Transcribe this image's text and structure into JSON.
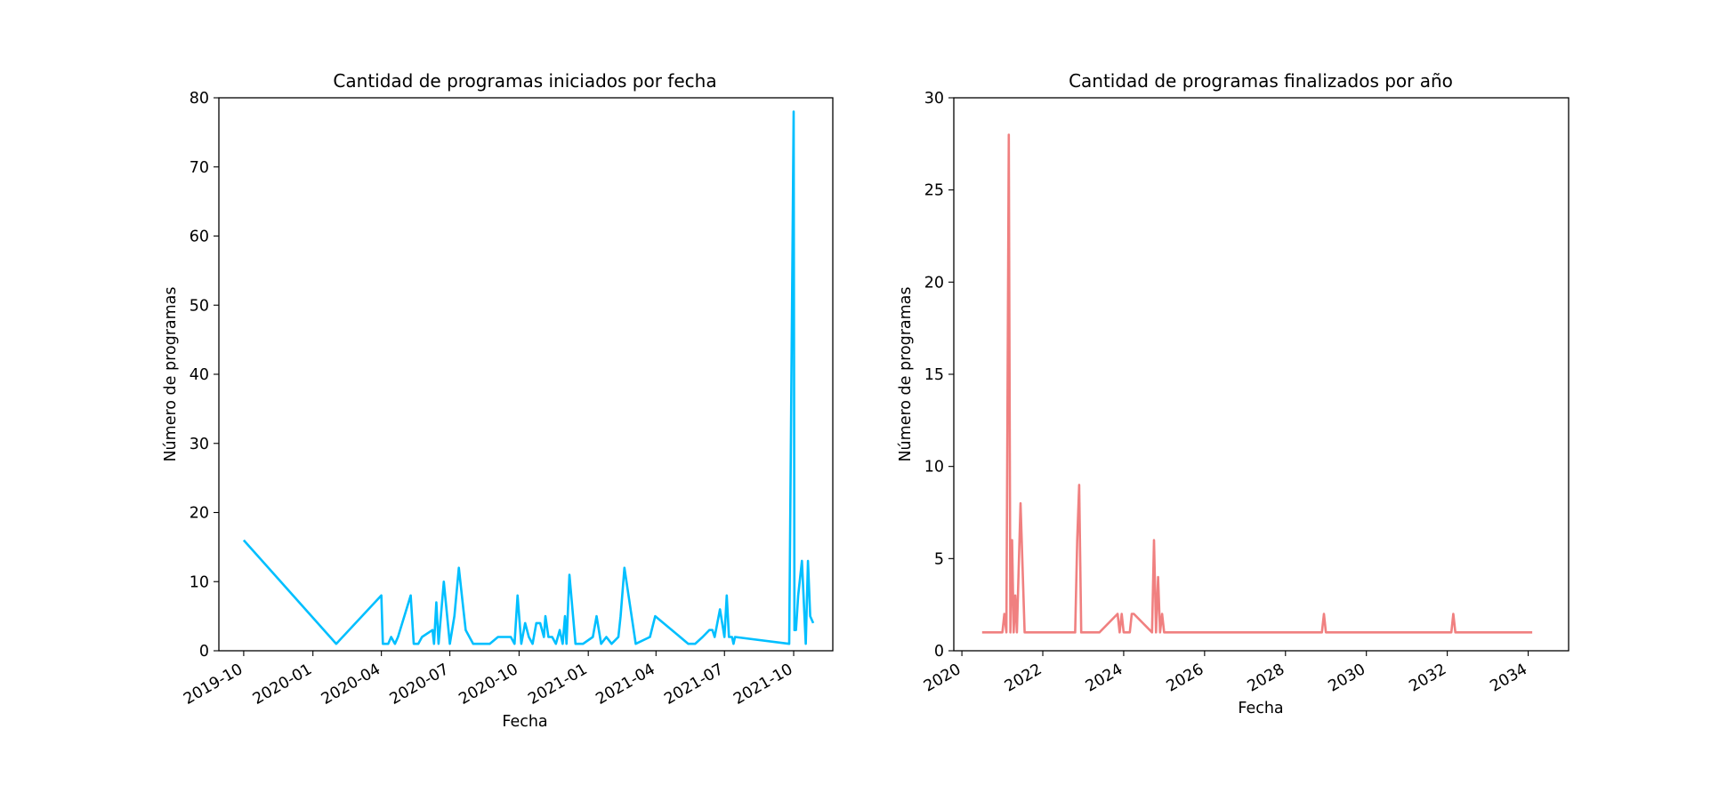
{
  "chart_data": [
    {
      "type": "line",
      "title": "Cantidad de programas iniciados por fecha",
      "xlabel": "Fecha",
      "ylabel": "Número de programas",
      "xticks": [
        "2019-10",
        "2020-01",
        "2020-04",
        "2020-07",
        "2020-10",
        "2021-01",
        "2021-04",
        "2021-07",
        "2021-10"
      ],
      "yticks": [
        "0",
        "10",
        "20",
        "30",
        "40",
        "50",
        "60",
        "70",
        "80"
      ],
      "xlim": [
        "2019-08-29",
        "2021-11-22"
      ],
      "ylim": [
        0,
        80
      ],
      "grid": false,
      "color": "#00bfff",
      "x": [
        "2019-10-01",
        "2020-02-01",
        "2020-04-01",
        "2020-04-03",
        "2020-04-10",
        "2020-04-14",
        "2020-04-19",
        "2020-04-23",
        "2020-05-10",
        "2020-05-14",
        "2020-05-20",
        "2020-05-25",
        "2020-06-08",
        "2020-06-10",
        "2020-06-13",
        "2020-06-16",
        "2020-06-23",
        "2020-07-01",
        "2020-07-07",
        "2020-07-13",
        "2020-07-19",
        "2020-07-22",
        "2020-08-01",
        "2020-08-23",
        "2020-09-03",
        "2020-09-20",
        "2020-09-25",
        "2020-09-29",
        "2020-10-04",
        "2020-10-09",
        "2020-10-14",
        "2020-10-19",
        "2020-10-24",
        "2020-10-29",
        "2020-11-03",
        "2020-11-05",
        "2020-11-09",
        "2020-11-14",
        "2020-11-19",
        "2020-11-24",
        "2020-11-28",
        "2020-12-01",
        "2020-12-03",
        "2020-12-07",
        "2020-12-15",
        "2020-12-25",
        "2021-01-07",
        "2021-01-12",
        "2021-01-18",
        "2021-01-25",
        "2021-02-01",
        "2021-02-10",
        "2021-02-13",
        "2021-02-18",
        "2021-03-05",
        "2021-03-24",
        "2021-03-31",
        "2021-05-14",
        "2021-05-23",
        "2021-06-02",
        "2021-06-11",
        "2021-06-15",
        "2021-06-18",
        "2021-06-25",
        "2021-07-01",
        "2021-07-04",
        "2021-07-07",
        "2021-07-11",
        "2021-07-13",
        "2021-07-15",
        "2021-09-25",
        "2021-10-01",
        "2021-10-02",
        "2021-10-04",
        "2021-10-07",
        "2021-10-12",
        "2021-10-17",
        "2021-10-20",
        "2021-10-23",
        "2021-10-27"
      ],
      "y": [
        16,
        1,
        8,
        1,
        1,
        2,
        1,
        2,
        8,
        1,
        1,
        2,
        3,
        1,
        7,
        1,
        10,
        1,
        5,
        12,
        6,
        3,
        1,
        1,
        2,
        2,
        1,
        8,
        1,
        4,
        2,
        1,
        4,
        4,
        2,
        5,
        2,
        2,
        1,
        3,
        1,
        5,
        1,
        11,
        1,
        1,
        2,
        5,
        1,
        2,
        1,
        2,
        5,
        12,
        1,
        2,
        5,
        1,
        1,
        2,
        3,
        3,
        2,
        6,
        2,
        8,
        2,
        2,
        1,
        2,
        1,
        78,
        3,
        3,
        8,
        13,
        1,
        13,
        5,
        4
      ]
    },
    {
      "type": "line",
      "title": "Cantidad de programas finalizados por año",
      "xlabel": "Fecha",
      "ylabel": "Número de programas",
      "xticks": [
        "2020",
        "2022",
        "2024",
        "2026",
        "2028",
        "2030",
        "2032",
        "2034"
      ],
      "yticks": [
        "0",
        "5",
        "10",
        "15",
        "20",
        "25",
        "30"
      ],
      "xlim": [
        2019.8,
        2035.0
      ],
      "ylim": [
        0,
        30
      ],
      "grid": false,
      "color": "#f08080",
      "x": [
        2020.5,
        2020.95,
        2021.0,
        2021.05,
        2021.1,
        2021.16,
        2021.2,
        2021.24,
        2021.28,
        2021.32,
        2021.36,
        2021.45,
        2021.55,
        2021.9,
        2022.0,
        2022.8,
        2022.85,
        2022.9,
        2022.95,
        2023.0,
        2023.4,
        2023.85,
        2023.9,
        2023.95,
        2024.0,
        2024.05,
        2024.15,
        2024.2,
        2024.25,
        2024.7,
        2024.75,
        2024.8,
        2024.85,
        2024.9,
        2024.95,
        2025.0,
        2025.1,
        2028.8,
        2028.9,
        2028.95,
        2029.0,
        2032.1,
        2032.15,
        2032.2,
        2032.25,
        2034.1
      ],
      "y": [
        1,
        1,
        1,
        2,
        1,
        28,
        1,
        6,
        1,
        3,
        1,
        8,
        1,
        1,
        1,
        1,
        6,
        9,
        1,
        1,
        1,
        2,
        1,
        2,
        1,
        1,
        1,
        2,
        2,
        1,
        6,
        1,
        4,
        1,
        2,
        1,
        1,
        1,
        1,
        2,
        1,
        1,
        2,
        1,
        1,
        1
      ]
    }
  ]
}
